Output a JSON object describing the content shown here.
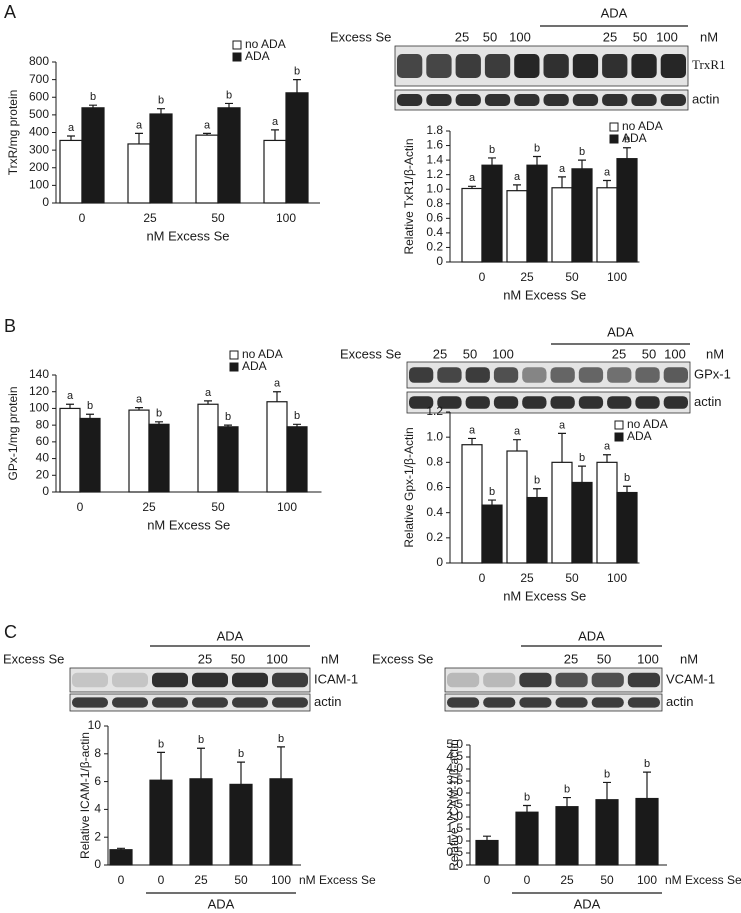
{
  "panels": [
    "A",
    "B",
    "C"
  ],
  "blots": [
    {
      "row_label": "Excess Se",
      "group": "ADA",
      "doses": [
        25,
        50,
        100,
        25,
        50,
        100
      ],
      "unit": "nM",
      "rows": [
        "TrxR1",
        "actin"
      ]
    },
    {
      "row_label": "Excess Se",
      "group": "ADA",
      "doses": [
        25,
        50,
        100,
        25,
        50,
        100
      ],
      "unit": "nM",
      "rows": [
        "GPx-1",
        "actin"
      ]
    },
    {
      "row_label": "Excess Se",
      "group": "ADA",
      "doses": [
        25,
        50,
        100
      ],
      "unit": "nM",
      "rows": [
        "ICAM-1",
        "actin"
      ]
    },
    {
      "row_label": "Excess Se",
      "group": "ADA",
      "doses": [
        25,
        50,
        100
      ],
      "unit": "nM",
      "rows": [
        "VCAM-1",
        "actin"
      ]
    }
  ],
  "chart_data": [
    {
      "type": "bar",
      "y_label": "TrxR/mg protein",
      "x_label": "nM Excess Se",
      "categories": [
        "0",
        "25",
        "50",
        "100"
      ],
      "ylim": [
        0,
        800
      ],
      "yticks": [
        0,
        100,
        200,
        300,
        400,
        500,
        600,
        700,
        800
      ],
      "series": [
        {
          "name": "no ADA",
          "color": "#ffffff",
          "values": [
            355,
            335,
            385,
            355
          ],
          "errors": [
            25,
            60,
            10,
            60
          ],
          "letters": [
            "a",
            "a",
            "a",
            "a"
          ]
        },
        {
          "name": "ADA",
          "color": "#1a1a1a",
          "values": [
            540,
            505,
            540,
            625
          ],
          "errors": [
            15,
            30,
            25,
            75
          ],
          "letters": [
            "b",
            "b",
            "b",
            "b"
          ]
        }
      ]
    },
    {
      "type": "bar",
      "y_label": "Relative TxR1/β-Actin",
      "x_label": "nM Excess Se",
      "categories": [
        "0",
        "25",
        "50",
        "100"
      ],
      "ylim": [
        0,
        1.8
      ],
      "yticks": [
        0,
        0.2,
        0.4,
        0.6,
        0.8,
        {
          "value": 1,
          "label": "1.0"
        },
        1.2,
        1.4,
        1.6,
        1.8
      ],
      "series": [
        {
          "name": "no ADA",
          "color": "#ffffff",
          "values": [
            1.01,
            0.98,
            1.02,
            1.02
          ],
          "errors": [
            0.03,
            0.08,
            0.15,
            0.1
          ],
          "letters": [
            "a",
            "a",
            "a",
            "a"
          ]
        },
        {
          "name": "ADA",
          "color": "#1a1a1a",
          "values": [
            1.33,
            1.33,
            1.28,
            1.42
          ],
          "errors": [
            0.1,
            0.12,
            0.12,
            0.15
          ],
          "letters": [
            "b",
            "b",
            "b",
            "b"
          ]
        }
      ]
    },
    {
      "type": "bar",
      "y_label": "GPx-1/mg protein",
      "x_label": "nM Excess Se",
      "categories": [
        "0",
        "25",
        "50",
        "100"
      ],
      "ylim": [
        0,
        140
      ],
      "yticks": [
        0,
        20,
        40,
        60,
        80,
        100,
        120,
        140
      ],
      "series": [
        {
          "name": "no ADA",
          "color": "#ffffff",
          "values": [
            100,
            98,
            105,
            108
          ],
          "errors": [
            5,
            3,
            4,
            12
          ],
          "letters": [
            "a",
            "a",
            "a",
            "a"
          ]
        },
        {
          "name": "ADA",
          "color": "#1a1a1a",
          "values": [
            88,
            81,
            78,
            78
          ],
          "errors": [
            5,
            3,
            2,
            3
          ],
          "letters": [
            "b",
            "b",
            "b",
            "b"
          ]
        }
      ]
    },
    {
      "type": "bar",
      "y_label": "Relative Gpx-1/β-Actin",
      "x_label": "nM Excess Se",
      "categories": [
        "0",
        "25",
        "50",
        "100"
      ],
      "ylim": [
        0,
        1.2
      ],
      "yticks": [
        0,
        0.2,
        0.4,
        0.6,
        0.8,
        {
          "value": 1,
          "label": "1.0"
        },
        1.2
      ],
      "series": [
        {
          "name": "no ADA",
          "color": "#ffffff",
          "values": [
            0.94,
            0.89,
            0.8,
            0.8
          ],
          "errors": [
            0.05,
            0.09,
            0.23,
            0.06
          ],
          "letters": [
            "a",
            "a",
            "a",
            "a"
          ]
        },
        {
          "name": "ADA",
          "color": "#1a1a1a",
          "values": [
            0.46,
            0.52,
            0.64,
            0.56
          ],
          "errors": [
            0.04,
            0.07,
            0.13,
            0.05
          ],
          "letters": [
            "b",
            "b",
            "b",
            "b"
          ]
        }
      ]
    },
    {
      "type": "bar",
      "y_label": "Relative ICAM-1/β-actin",
      "x_label": "nM Excess Se",
      "group_label": "ADA",
      "categories": [
        "0",
        "0",
        "25",
        "50",
        "100"
      ],
      "ylim": [
        0,
        10
      ],
      "yticks": [
        0,
        2,
        4,
        6,
        8,
        10
      ],
      "series": [
        {
          "color": "#1a1a1a",
          "values": [
            1.1,
            6.1,
            6.2,
            5.8,
            6.2
          ],
          "errors": [
            0.1,
            2.0,
            2.2,
            1.6,
            2.3
          ],
          "letters": [
            null,
            "b",
            "b",
            "b",
            "b"
          ]
        }
      ]
    },
    {
      "type": "bar",
      "y_label": "Relative VCAM-1/β-actin",
      "x_label": "nM Excess Se",
      "group_label": "ADA",
      "categories": [
        "0",
        "0",
        "25",
        "50",
        "100"
      ],
      "ylim": [
        0,
        5
      ],
      "yticks": [
        0,
        0.5,
        {
          "value": 1,
          "label": "1.0"
        },
        1.5,
        {
          "value": 2,
          "label": "2.0"
        },
        2.5,
        {
          "value": 3,
          "label": "3.0"
        },
        3.5,
        {
          "value": 4,
          "label": "4.0"
        },
        4.5,
        {
          "value": 5,
          "label": "5.0"
        }
      ],
      "series": [
        {
          "color": "#1a1a1a",
          "values": [
            1.02,
            2.2,
            2.43,
            2.72,
            2.77
          ],
          "errors": [
            0.18,
            0.28,
            0.38,
            0.72,
            1.1
          ],
          "letters": [
            null,
            "b",
            "b",
            "b",
            "b"
          ]
        }
      ]
    }
  ]
}
